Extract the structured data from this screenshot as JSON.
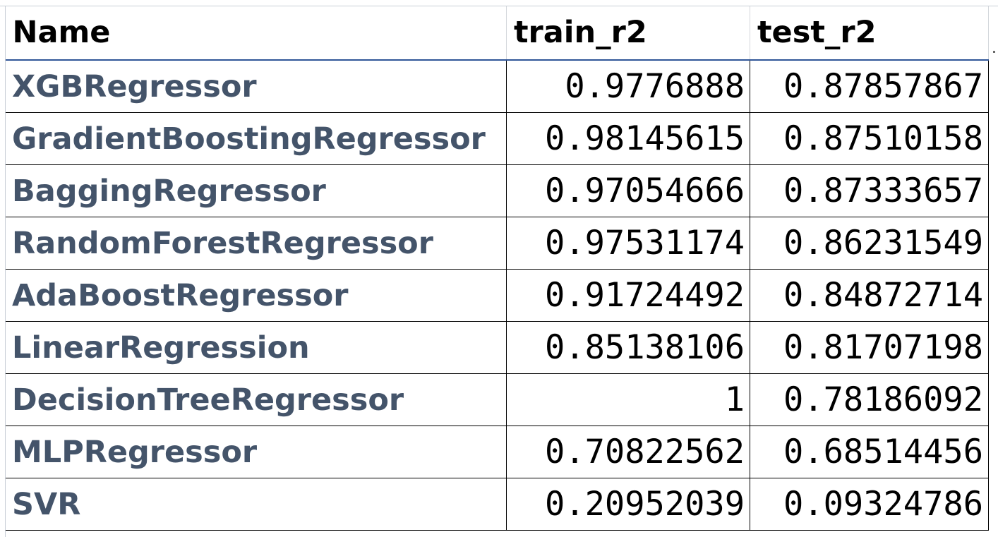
{
  "table": {
    "columns": [
      "Name",
      "train_r2",
      "test_r2"
    ],
    "rows": [
      {
        "name": "XGBRegressor",
        "train_r2": "0.9776888",
        "test_r2": "0.87857867"
      },
      {
        "name": "GradientBoostingRegressor",
        "train_r2": "0.98145615",
        "test_r2": "0.87510158"
      },
      {
        "name": "BaggingRegressor",
        "train_r2": "0.97054666",
        "test_r2": "0.87333657"
      },
      {
        "name": "RandomForestRegressor",
        "train_r2": "0.97531174",
        "test_r2": "0.86231549"
      },
      {
        "name": "AdaBoostRegressor",
        "train_r2": "0.91724492",
        "test_r2": "0.84872714"
      },
      {
        "name": "LinearRegression",
        "train_r2": "0.85138106",
        "test_r2": "0.81707198"
      },
      {
        "name": "DecisionTreeRegressor",
        "train_r2": "1",
        "test_r2": "0.78186092"
      },
      {
        "name": "MLPRegressor",
        "train_r2": "0.70822562",
        "test_r2": "0.68514456"
      },
      {
        "name": "SVR",
        "train_r2": "0.20952039",
        "test_r2": "0.09324786"
      }
    ]
  },
  "colors": {
    "name_text": "#44546a",
    "header_text": "#000000",
    "header_underline": "#2f5597",
    "cell_border": "#000000"
  }
}
